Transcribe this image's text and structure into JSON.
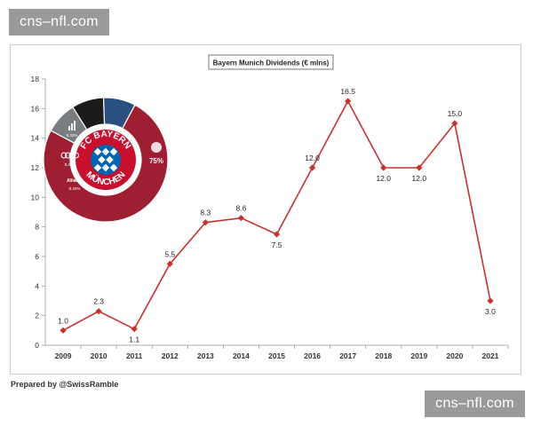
{
  "watermark": {
    "text": "cns–nfl.com"
  },
  "credit": "Prepared by @SwissRamble",
  "colors": {
    "line": "#c8322e",
    "donut_main": "#9e1f32",
    "donut_grey": "#7a7d80",
    "donut_black": "#1b1b1b",
    "donut_blue": "#2b4f7e"
  },
  "logo": {
    "top_text": "FC BAYERN",
    "bottom_text": "MÜNCHEN",
    "segments": [
      {
        "name": "FC Bayern",
        "pct_label": "75%",
        "value": 75
      },
      {
        "name": "adidas",
        "pct_label": "8.33%",
        "value": 8.33
      },
      {
        "name": "Audi",
        "pct_label": "8.33%",
        "value": 8.33
      },
      {
        "name": "Allianz",
        "pct_label": "8.33%",
        "value": 8.33
      }
    ]
  },
  "chart_data": {
    "type": "line",
    "title": "Bayern Munich Dividends (€ mlns)",
    "xlabel": "",
    "ylabel": "",
    "categories": [
      "2009",
      "2010",
      "2011",
      "2012",
      "2013",
      "2014",
      "2015",
      "2016",
      "2017",
      "2018",
      "2019",
      "2020",
      "2021"
    ],
    "values": [
      1.0,
      2.3,
      1.1,
      5.5,
      8.3,
      8.6,
      7.5,
      12.0,
      16.5,
      12.0,
      12.0,
      15.0,
      3.0
    ],
    "labels": [
      "1.0",
      "2.3",
      "1.1",
      "5.5",
      "8.3",
      "8.6",
      "7.5",
      "12.0",
      "16.5",
      "12.0",
      "12.0",
      "15.0",
      "3.0"
    ],
    "label_positions": [
      "above",
      "above",
      "below",
      "above",
      "above",
      "above",
      "below",
      "above",
      "above",
      "below",
      "below",
      "above",
      "below"
    ],
    "ylim": [
      0,
      18
    ],
    "yticks": [
      0,
      2,
      4,
      6,
      8,
      10,
      12,
      14,
      16,
      18
    ],
    "grid": false
  }
}
